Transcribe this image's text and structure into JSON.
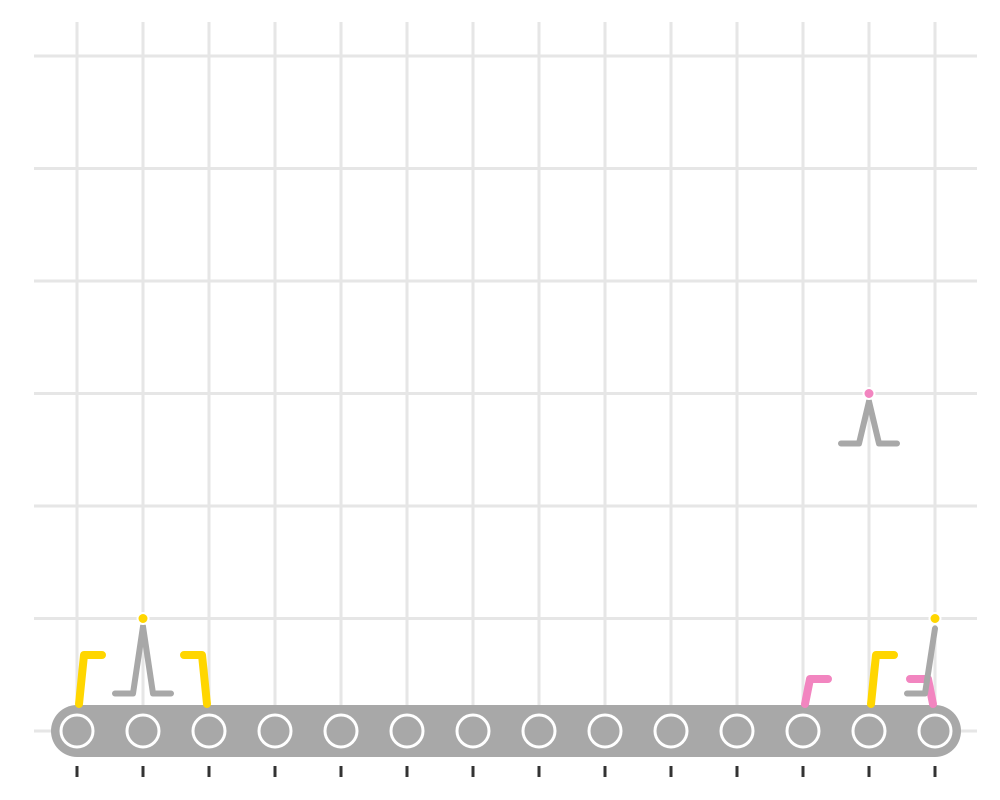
{
  "colors": {
    "background": "#ffffff",
    "grid": "#e6e6e6",
    "belt": "#a8a8a8",
    "roller_fill": "#a8a8a8",
    "roller_ring": "#ffffff",
    "tick": "#333333",
    "figure_body": "#a8a8a8",
    "yellow": "#ffd600",
    "pink": "#f285c0"
  },
  "rollers": {
    "count": 14
  },
  "figures_above": [
    {
      "column": 2,
      "row": 1,
      "pose": "lambda",
      "head_color": "yellow"
    },
    {
      "column": 14,
      "row": 1,
      "pose": "slash",
      "head_color": "yellow"
    },
    {
      "column": 13,
      "row": 3,
      "pose": "lambda",
      "head_color": "pink"
    }
  ],
  "belt_items": [
    {
      "column": 1,
      "shape": "hook-right",
      "color": "yellow",
      "size": "tall"
    },
    {
      "column": 3,
      "shape": "hook-left",
      "color": "yellow",
      "size": "tall"
    },
    {
      "column": 12,
      "shape": "hook-right",
      "color": "pink",
      "size": "short"
    },
    {
      "column": 13,
      "shape": "hook-right",
      "color": "yellow",
      "size": "tall"
    },
    {
      "column": 14,
      "shape": "hook-left",
      "color": "pink",
      "size": "short"
    }
  ]
}
